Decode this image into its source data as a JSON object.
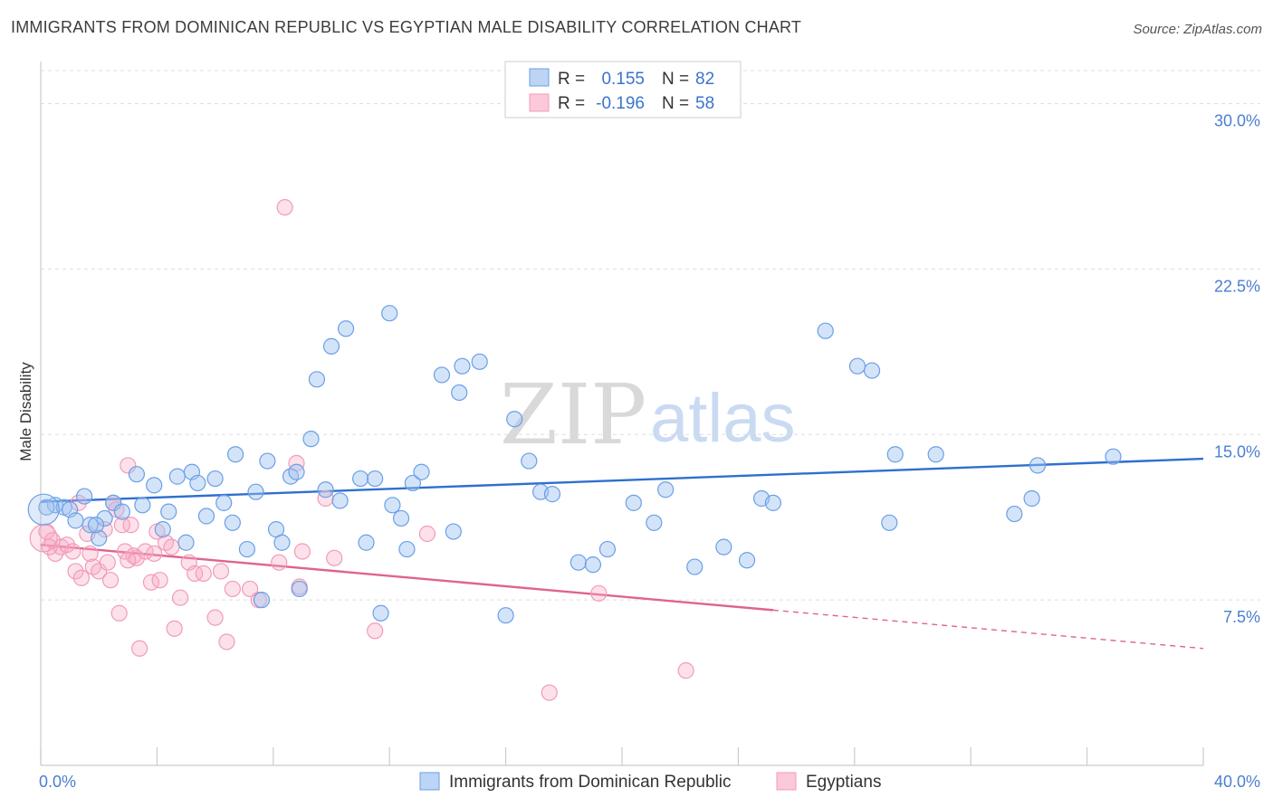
{
  "title": "IMMIGRANTS FROM DOMINICAN REPUBLIC VS EGYPTIAN MALE DISABILITY CORRELATION CHART",
  "source": "Source: ZipAtlas.com",
  "watermark": {
    "zip": "ZIP",
    "atlas": "atlas"
  },
  "legend": {
    "r_label": "R =",
    "n_label": "N =",
    "entries": [
      {
        "r": "0.155",
        "n": "82"
      },
      {
        "r": "-0.196",
        "n": "58"
      }
    ]
  },
  "chart_data": {
    "type": "scatter",
    "title": "IMMIGRANTS FROM DOMINICAN REPUBLIC VS EGYPTIAN MALE DISABILITY CORRELATION CHART",
    "xlabel": "",
    "ylabel": "Male Disability",
    "xlim": [
      0,
      40
    ],
    "ylim": [
      0,
      31.5
    ],
    "x_tick_labels": [
      "0.0%",
      "40.0%"
    ],
    "y_ticks": [
      7.5,
      15.0,
      22.5,
      30.0
    ],
    "y_tick_labels": [
      "7.5%",
      "15.0%",
      "22.5%",
      "30.0%"
    ],
    "grid": true,
    "legend_position": "top-center",
    "colors": {
      "dominican": "#6a9fe6",
      "egyptian": "#f29bb8",
      "dominican_line": "#2f6fce",
      "egyptian_line": "#e0638f"
    },
    "series": [
      {
        "name": "Immigrants from Dominican Republic",
        "trend": {
          "x": [
            0,
            40
          ],
          "y": [
            11.95,
            13.9
          ],
          "dashed_from": null
        },
        "points": [
          [
            0.5,
            11.8
          ],
          [
            0.8,
            11.7
          ],
          [
            1.0,
            11.6
          ],
          [
            1.2,
            11.1
          ],
          [
            1.5,
            12.2
          ],
          [
            1.7,
            10.9
          ],
          [
            2.0,
            10.3
          ],
          [
            2.2,
            11.2
          ],
          [
            2.5,
            11.9
          ],
          [
            2.8,
            11.5
          ],
          [
            3.3,
            13.2
          ],
          [
            3.5,
            11.8
          ],
          [
            3.9,
            12.7
          ],
          [
            4.2,
            10.7
          ],
          [
            4.4,
            11.5
          ],
          [
            4.7,
            13.1
          ],
          [
            5.0,
            10.1
          ],
          [
            5.2,
            13.3
          ],
          [
            5.4,
            12.8
          ],
          [
            5.7,
            11.3
          ],
          [
            6.0,
            13.0
          ],
          [
            6.3,
            11.9
          ],
          [
            6.6,
            11.0
          ],
          [
            6.7,
            14.1
          ],
          [
            7.1,
            9.8
          ],
          [
            7.4,
            12.4
          ],
          [
            7.6,
            7.5
          ],
          [
            7.8,
            13.8
          ],
          [
            8.1,
            10.7
          ],
          [
            8.3,
            10.1
          ],
          [
            8.6,
            13.1
          ],
          [
            8.8,
            13.3
          ],
          [
            8.9,
            8.0
          ],
          [
            9.3,
            14.8
          ],
          [
            9.5,
            17.5
          ],
          [
            9.8,
            12.5
          ],
          [
            10.0,
            19.0
          ],
          [
            10.3,
            12.0
          ],
          [
            10.5,
            19.8
          ],
          [
            11.0,
            13.0
          ],
          [
            11.2,
            10.1
          ],
          [
            11.5,
            13.0
          ],
          [
            11.7,
            6.9
          ],
          [
            12.0,
            20.5
          ],
          [
            12.1,
            11.8
          ],
          [
            12.4,
            11.2
          ],
          [
            12.6,
            9.8
          ],
          [
            12.8,
            12.8
          ],
          [
            13.1,
            13.3
          ],
          [
            13.8,
            17.7
          ],
          [
            14.2,
            10.6
          ],
          [
            14.4,
            16.9
          ],
          [
            14.5,
            18.1
          ],
          [
            15.1,
            18.3
          ],
          [
            16.0,
            6.8
          ],
          [
            16.3,
            15.7
          ],
          [
            16.8,
            13.8
          ],
          [
            17.2,
            12.4
          ],
          [
            17.6,
            12.3
          ],
          [
            18.5,
            9.2
          ],
          [
            19.0,
            9.1
          ],
          [
            19.5,
            9.8
          ],
          [
            20.4,
            11.9
          ],
          [
            21.1,
            11.0
          ],
          [
            21.5,
            12.5
          ],
          [
            22.5,
            9.0
          ],
          [
            23.5,
            9.9
          ],
          [
            24.3,
            9.3
          ],
          [
            24.8,
            12.1
          ],
          [
            25.2,
            11.9
          ],
          [
            27.0,
            19.7
          ],
          [
            28.1,
            18.1
          ],
          [
            28.6,
            17.9
          ],
          [
            29.2,
            11.0
          ],
          [
            29.4,
            14.1
          ],
          [
            30.8,
            14.1
          ],
          [
            33.5,
            11.4
          ],
          [
            34.1,
            12.1
          ],
          [
            34.3,
            13.6
          ],
          [
            36.9,
            14.0
          ],
          [
            0.2,
            11.7
          ],
          [
            1.9,
            10.9
          ]
        ]
      },
      {
        "name": "Egyptians",
        "trend": {
          "x": [
            0,
            40
          ],
          "y": [
            10.0,
            5.3
          ],
          "dashed_from": 25.2
        },
        "points": [
          [
            0.2,
            10.6
          ],
          [
            0.4,
            10.2
          ],
          [
            0.5,
            9.6
          ],
          [
            0.7,
            9.9
          ],
          [
            0.9,
            10.0
          ],
          [
            1.1,
            9.7
          ],
          [
            1.2,
            8.8
          ],
          [
            1.4,
            8.5
          ],
          [
            1.6,
            10.5
          ],
          [
            1.7,
            9.6
          ],
          [
            1.8,
            9.0
          ],
          [
            2.0,
            8.8
          ],
          [
            2.2,
            10.7
          ],
          [
            2.3,
            9.2
          ],
          [
            2.4,
            8.4
          ],
          [
            2.5,
            11.9
          ],
          [
            2.6,
            11.6
          ],
          [
            2.7,
            6.9
          ],
          [
            2.9,
            9.7
          ],
          [
            3.0,
            13.6
          ],
          [
            3.1,
            10.9
          ],
          [
            3.2,
            9.5
          ],
          [
            3.3,
            9.4
          ],
          [
            3.4,
            5.3
          ],
          [
            3.6,
            9.7
          ],
          [
            3.8,
            8.3
          ],
          [
            3.9,
            9.6
          ],
          [
            4.1,
            8.4
          ],
          [
            4.3,
            10.1
          ],
          [
            4.5,
            9.9
          ],
          [
            4.6,
            6.2
          ],
          [
            4.8,
            7.6
          ],
          [
            5.1,
            9.2
          ],
          [
            5.3,
            8.7
          ],
          [
            5.6,
            8.7
          ],
          [
            6.0,
            6.7
          ],
          [
            6.2,
            8.8
          ],
          [
            6.4,
            5.6
          ],
          [
            6.6,
            8.0
          ],
          [
            7.2,
            8.0
          ],
          [
            7.5,
            7.5
          ],
          [
            8.2,
            9.2
          ],
          [
            8.4,
            25.3
          ],
          [
            8.8,
            13.7
          ],
          [
            8.9,
            8.1
          ],
          [
            9.0,
            9.7
          ],
          [
            9.8,
            12.1
          ],
          [
            10.1,
            9.4
          ],
          [
            11.5,
            6.1
          ],
          [
            13.3,
            10.5
          ],
          [
            17.5,
            3.3
          ],
          [
            19.2,
            7.8
          ],
          [
            22.2,
            4.3
          ],
          [
            0.3,
            9.9
          ],
          [
            1.3,
            11.9
          ],
          [
            2.8,
            10.9
          ],
          [
            3.0,
            9.3
          ],
          [
            4.0,
            10.6
          ]
        ]
      }
    ]
  },
  "bottom_legend": [
    "Immigrants from Dominican Republic",
    "Egyptians"
  ]
}
